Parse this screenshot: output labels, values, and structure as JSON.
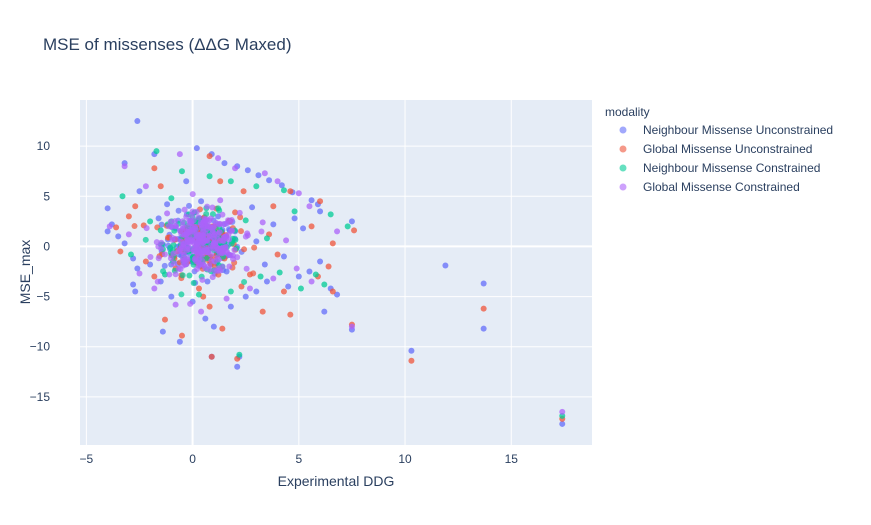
{
  "chart_data": {
    "type": "scatter",
    "title": "MSE of missenses (ΔΔG Maxed)",
    "xlabel": "Experimental DDG",
    "ylabel": "MSE_max",
    "xlim": [
      -5.3,
      18.8
    ],
    "ylim": [
      -19.8,
      14.6
    ],
    "x_ticks": [
      -5,
      0,
      5,
      10,
      15
    ],
    "y_ticks": [
      -15,
      -10,
      -5,
      0,
      5,
      10
    ],
    "grid": true,
    "legend_title": "modality",
    "legend_position": "right",
    "series": [
      {
        "name": "Neighbour Missense Unconstrained",
        "color": "#636efa",
        "points": [
          [
            -2.6,
            12.5
          ],
          [
            0.2,
            9.8
          ],
          [
            -1.8,
            9.2
          ],
          [
            0.9,
            9.2
          ],
          [
            1.5,
            8.3
          ],
          [
            2.1,
            8.0
          ],
          [
            2.6,
            7.6
          ],
          [
            3.1,
            7.1
          ],
          [
            3.6,
            6.6
          ],
          [
            4.2,
            6.1
          ],
          [
            4.7,
            5.4
          ],
          [
            5.6,
            4.6
          ],
          [
            5.9,
            4.2
          ],
          [
            6.0,
            3.5
          ],
          [
            7.5,
            2.5
          ],
          [
            -4.0,
            3.8
          ],
          [
            -3.2,
            8.3
          ],
          [
            -2.5,
            5.5
          ],
          [
            -3.8,
            2.2
          ],
          [
            -4.0,
            1.5
          ],
          [
            -3.5,
            1.0
          ],
          [
            -3.2,
            0.3
          ],
          [
            -2.8,
            -1.2
          ],
          [
            -2.6,
            -2.2
          ],
          [
            -2.8,
            -3.8
          ],
          [
            -2.7,
            -4.5
          ],
          [
            -1.5,
            -3.5
          ],
          [
            -1.0,
            -5.0
          ],
          [
            -1.4,
            -8.5
          ],
          [
            -0.6,
            -9.5
          ],
          [
            0.0,
            -5.5
          ],
          [
            0.6,
            -7.2
          ],
          [
            1.0,
            -8.0
          ],
          [
            1.8,
            -6.0
          ],
          [
            2.5,
            -5.0
          ],
          [
            3.0,
            -4.5
          ],
          [
            3.5,
            -3.5
          ],
          [
            4.5,
            -4.0
          ],
          [
            5.0,
            -3.0
          ],
          [
            5.5,
            -2.5
          ],
          [
            6.0,
            -1.5
          ],
          [
            6.5,
            -4.2
          ],
          [
            6.8,
            -4.8
          ],
          [
            7.5,
            -8.3
          ],
          [
            6.2,
            -6.5
          ],
          [
            2.1,
            -12.0
          ],
          [
            2.2,
            -11.0
          ],
          [
            0.9,
            -11.0
          ],
          [
            11.9,
            -1.9
          ],
          [
            13.7,
            -3.7
          ],
          [
            13.7,
            -8.2
          ],
          [
            10.3,
            -10.4
          ],
          [
            17.4,
            -17.7
          ],
          [
            1.2,
            3.0
          ],
          [
            2.0,
            1.5
          ],
          [
            3.0,
            0.5
          ],
          [
            3.8,
            2.2
          ],
          [
            4.3,
            -1.0
          ],
          [
            1.6,
            -2.5
          ],
          [
            -0.8,
            1.8
          ],
          [
            -1.6,
            2.8
          ],
          [
            -2.0,
            -1.8
          ],
          [
            0.4,
            4.5
          ],
          [
            2.8,
            3.9
          ],
          [
            3.4,
            -1.8
          ],
          [
            5.2,
            1.8
          ],
          [
            -1.2,
            4.2
          ],
          [
            0.7,
            -3.5
          ],
          [
            -0.3,
            6.5
          ],
          [
            4.8,
            2.8
          ]
        ]
      },
      {
        "name": "Global Missense Unconstrained",
        "color": "#ef553b",
        "points": [
          [
            -1.8,
            7.8
          ],
          [
            -1.5,
            6.0
          ],
          [
            -2.7,
            4.0
          ],
          [
            -3.0,
            3.0
          ],
          [
            -3.6,
            1.9
          ],
          [
            -3.4,
            -0.5
          ],
          [
            -2.2,
            -1.5
          ],
          [
            -1.8,
            -3.0
          ],
          [
            -1.3,
            -7.3
          ],
          [
            -0.5,
            -8.9
          ],
          [
            0.5,
            -5.0
          ],
          [
            0.8,
            -6.0
          ],
          [
            1.4,
            -8.2
          ],
          [
            2.3,
            -4.0
          ],
          [
            3.3,
            -6.5
          ],
          [
            4.3,
            -4.5
          ],
          [
            4.6,
            -6.8
          ],
          [
            5.9,
            -3.0
          ],
          [
            6.4,
            -2.0
          ],
          [
            6.6,
            -4.5
          ],
          [
            7.5,
            -7.8
          ],
          [
            7.6,
            1.6
          ],
          [
            6.6,
            0.3
          ],
          [
            5.6,
            2.0
          ],
          [
            6.0,
            4.5
          ],
          [
            4.6,
            5.5
          ],
          [
            3.8,
            4.0
          ],
          [
            2.4,
            5.5
          ],
          [
            1.3,
            6.5
          ],
          [
            0.8,
            9.0
          ],
          [
            0.9,
            -11.0
          ],
          [
            2.1,
            -11.2
          ],
          [
            10.3,
            -11.4
          ],
          [
            13.7,
            -6.2
          ],
          [
            17.4,
            -17.2
          ],
          [
            1.0,
            2.0
          ],
          [
            -0.8,
            -2.2
          ],
          [
            2.7,
            -2.8
          ],
          [
            3.6,
            1.2
          ],
          [
            -1.1,
            0.9
          ],
          [
            0.3,
            -4.2
          ],
          [
            2.0,
            3.4
          ],
          [
            4.0,
            -0.8
          ],
          [
            -2.3,
            2.1
          ],
          [
            1.5,
            -1.2
          ]
        ]
      },
      {
        "name": "Neighbour Missense Constrained",
        "color": "#00cc96",
        "points": [
          [
            -1.7,
            9.5
          ],
          [
            -0.5,
            7.5
          ],
          [
            0.8,
            7.0
          ],
          [
            1.8,
            6.5
          ],
          [
            3.0,
            6.0
          ],
          [
            4.3,
            5.6
          ],
          [
            4.8,
            3.5
          ],
          [
            6.5,
            3.2
          ],
          [
            7.3,
            2.0
          ],
          [
            5.8,
            -2.8
          ],
          [
            -3.3,
            5.0
          ],
          [
            -1.0,
            4.8
          ],
          [
            -2.0,
            2.5
          ],
          [
            -2.9,
            -0.8
          ],
          [
            -1.3,
            -2.8
          ],
          [
            0.3,
            -4.8
          ],
          [
            1.8,
            -4.5
          ],
          [
            3.2,
            -3.0
          ],
          [
            4.1,
            -2.6
          ],
          [
            5.1,
            -4.2
          ],
          [
            6.2,
            -3.8
          ],
          [
            2.2,
            -10.8
          ],
          [
            17.4,
            -16.9
          ],
          [
            0.9,
            1.3
          ],
          [
            2.5,
            2.6
          ],
          [
            -0.4,
            -1.6
          ],
          [
            1.4,
            -2.0
          ],
          [
            3.5,
            0.8
          ],
          [
            -1.5,
            1.6
          ],
          [
            0.1,
            3.4
          ]
        ]
      },
      {
        "name": "Global Missense Constrained",
        "color": "#ab63fa",
        "points": [
          [
            -3.2,
            8.0
          ],
          [
            -2.2,
            6.0
          ],
          [
            -0.6,
            9.2
          ],
          [
            1.2,
            8.8
          ],
          [
            2.0,
            7.8
          ],
          [
            3.4,
            7.3
          ],
          [
            4.0,
            6.5
          ],
          [
            5.0,
            5.3
          ],
          [
            5.5,
            4.0
          ],
          [
            6.8,
            1.5
          ],
          [
            -3.9,
            2.0
          ],
          [
            -3.0,
            1.2
          ],
          [
            -2.5,
            -2.7
          ],
          [
            -1.8,
            -4.2
          ],
          [
            -0.8,
            -5.8
          ],
          [
            0.4,
            -6.5
          ],
          [
            1.6,
            -5.2
          ],
          [
            2.7,
            -4.2
          ],
          [
            3.8,
            -3.2
          ],
          [
            4.9,
            -2.2
          ],
          [
            5.6,
            -3.5
          ],
          [
            7.5,
            -8.0
          ],
          [
            17.4,
            -16.5
          ],
          [
            0.0,
            0.5
          ],
          [
            0.5,
            -0.5
          ],
          [
            -0.3,
            1.2
          ],
          [
            1.0,
            0.3
          ],
          [
            1.9,
            -0.9
          ],
          [
            2.6,
            1.1
          ],
          [
            3.3,
            2.4
          ],
          [
            -1.2,
            3.3
          ],
          [
            0.6,
            2.6
          ],
          [
            4.4,
            0.6
          ],
          [
            -0.9,
            -0.7
          ],
          [
            1.3,
            4.6
          ]
        ]
      }
    ]
  }
}
